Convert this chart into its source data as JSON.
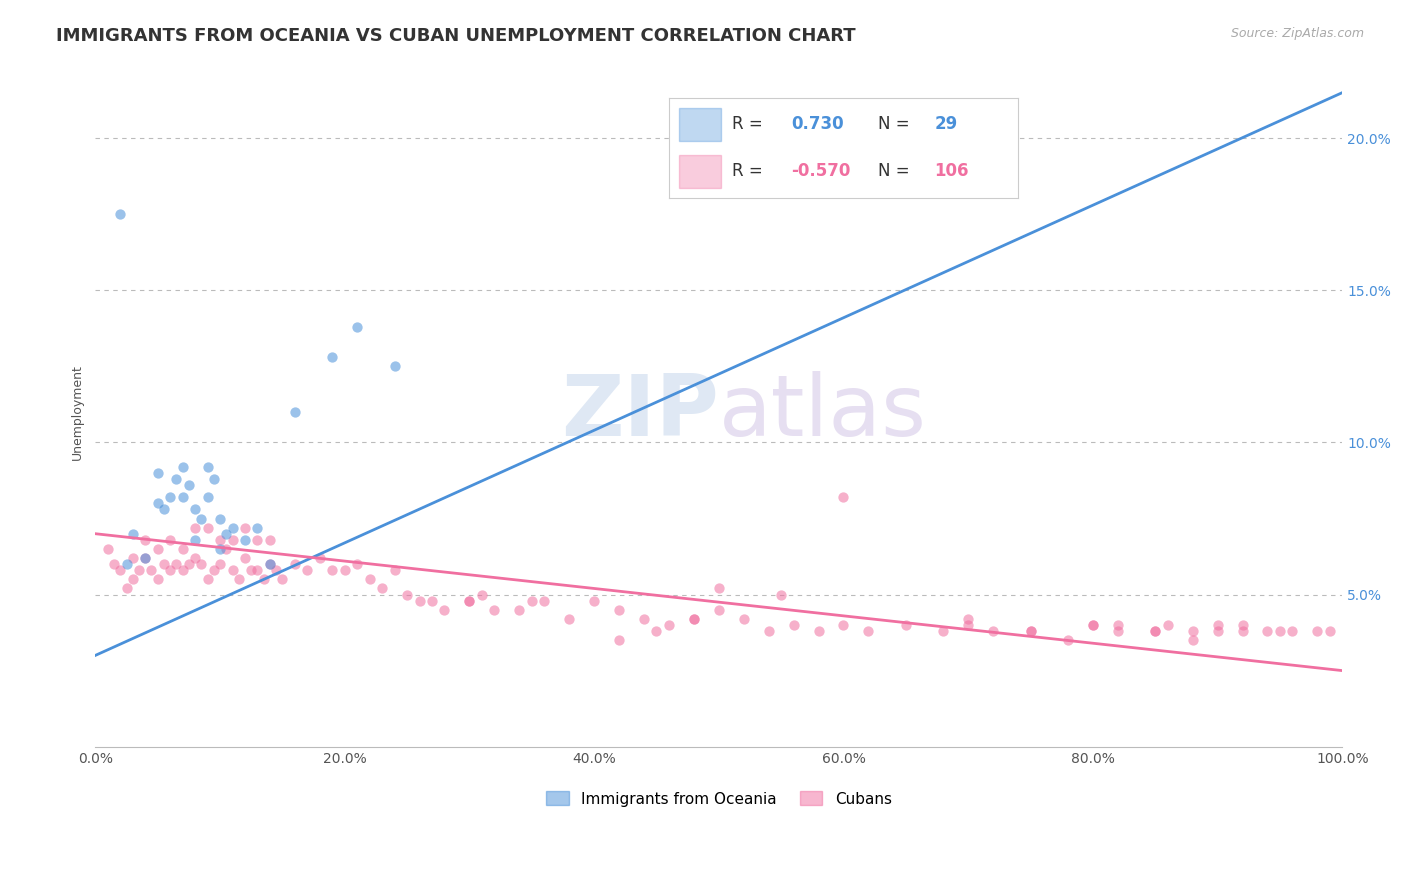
{
  "title": "IMMIGRANTS FROM OCEANIA VS CUBAN UNEMPLOYMENT CORRELATION CHART",
  "source_text": "Source: ZipAtlas.com",
  "ylabel": "Unemployment",
  "xlim": [
    0.0,
    1.0
  ],
  "ylim": [
    0.0,
    0.22
  ],
  "x_ticks": [
    0.0,
    0.2,
    0.4,
    0.6,
    0.8,
    1.0
  ],
  "x_tick_labels": [
    "0.0%",
    "20.0%",
    "40.0%",
    "60.0%",
    "80.0%",
    "100.0%"
  ],
  "y_ticks_right": [
    0.05,
    0.1,
    0.15,
    0.2
  ],
  "y_tick_labels_right": [
    "5.0%",
    "10.0%",
    "15.0%",
    "20.0%"
  ],
  "blue_color": "#4a90d9",
  "pink_color": "#f06fa0",
  "legend_R_blue": "0.730",
  "legend_N_blue": "29",
  "legend_R_pink": "-0.570",
  "legend_N_pink": "106",
  "blue_label": "Immigrants from Oceania",
  "pink_label": "Cubans",
  "watermark_zip": "ZIP",
  "watermark_atlas": "atlas",
  "grid_color": "#bbbbbb",
  "title_fontsize": 13,
  "axis_label_fontsize": 9,
  "tick_fontsize": 10,
  "legend_fontsize": 12,
  "blue_scatter_x": [
    0.02,
    0.025,
    0.03,
    0.04,
    0.05,
    0.05,
    0.055,
    0.06,
    0.065,
    0.07,
    0.07,
    0.075,
    0.08,
    0.08,
    0.085,
    0.09,
    0.09,
    0.095,
    0.1,
    0.1,
    0.105,
    0.11,
    0.12,
    0.13,
    0.14,
    0.16,
    0.19,
    0.21,
    0.24
  ],
  "blue_scatter_y": [
    0.175,
    0.06,
    0.07,
    0.062,
    0.08,
    0.09,
    0.078,
    0.082,
    0.088,
    0.082,
    0.092,
    0.086,
    0.068,
    0.078,
    0.075,
    0.082,
    0.092,
    0.088,
    0.065,
    0.075,
    0.07,
    0.072,
    0.068,
    0.072,
    0.06,
    0.11,
    0.128,
    0.138,
    0.125
  ],
  "pink_scatter_x": [
    0.01,
    0.015,
    0.02,
    0.025,
    0.03,
    0.03,
    0.035,
    0.04,
    0.04,
    0.045,
    0.05,
    0.05,
    0.055,
    0.06,
    0.06,
    0.065,
    0.07,
    0.07,
    0.075,
    0.08,
    0.08,
    0.085,
    0.09,
    0.09,
    0.095,
    0.1,
    0.1,
    0.105,
    0.11,
    0.11,
    0.115,
    0.12,
    0.12,
    0.125,
    0.13,
    0.13,
    0.135,
    0.14,
    0.14,
    0.145,
    0.15,
    0.16,
    0.17,
    0.18,
    0.19,
    0.2,
    0.21,
    0.22,
    0.23,
    0.24,
    0.25,
    0.26,
    0.27,
    0.28,
    0.3,
    0.31,
    0.32,
    0.34,
    0.36,
    0.38,
    0.4,
    0.42,
    0.44,
    0.46,
    0.48,
    0.5,
    0.52,
    0.54,
    0.56,
    0.58,
    0.6,
    0.62,
    0.65,
    0.68,
    0.7,
    0.72,
    0.75,
    0.78,
    0.8,
    0.82,
    0.85,
    0.88,
    0.9,
    0.92,
    0.95,
    0.5,
    0.55,
    0.6,
    0.7,
    0.75,
    0.8,
    0.85,
    0.9,
    0.82,
    0.86,
    0.88,
    0.92,
    0.94,
    0.96,
    0.98,
    0.99,
    0.48,
    0.45,
    0.42,
    0.3,
    0.35
  ],
  "pink_scatter_y": [
    0.065,
    0.06,
    0.058,
    0.052,
    0.055,
    0.062,
    0.058,
    0.062,
    0.068,
    0.058,
    0.055,
    0.065,
    0.06,
    0.058,
    0.068,
    0.06,
    0.058,
    0.065,
    0.06,
    0.062,
    0.072,
    0.06,
    0.055,
    0.072,
    0.058,
    0.06,
    0.068,
    0.065,
    0.058,
    0.068,
    0.055,
    0.062,
    0.072,
    0.058,
    0.058,
    0.068,
    0.055,
    0.06,
    0.068,
    0.058,
    0.055,
    0.06,
    0.058,
    0.062,
    0.058,
    0.058,
    0.06,
    0.055,
    0.052,
    0.058,
    0.05,
    0.048,
    0.048,
    0.045,
    0.048,
    0.05,
    0.045,
    0.045,
    0.048,
    0.042,
    0.048,
    0.045,
    0.042,
    0.04,
    0.042,
    0.045,
    0.042,
    0.038,
    0.04,
    0.038,
    0.04,
    0.038,
    0.04,
    0.038,
    0.04,
    0.038,
    0.038,
    0.035,
    0.04,
    0.038,
    0.038,
    0.035,
    0.04,
    0.038,
    0.038,
    0.052,
    0.05,
    0.082,
    0.042,
    0.038,
    0.04,
    0.038,
    0.038,
    0.04,
    0.04,
    0.038,
    0.04,
    0.038,
    0.038,
    0.038,
    0.038,
    0.042,
    0.038,
    0.035,
    0.048,
    0.048
  ],
  "blue_trend_x": [
    0.0,
    1.0
  ],
  "blue_trend_y": [
    0.03,
    0.215
  ],
  "pink_trend_x": [
    0.0,
    1.0
  ],
  "pink_trend_y": [
    0.07,
    0.025
  ]
}
